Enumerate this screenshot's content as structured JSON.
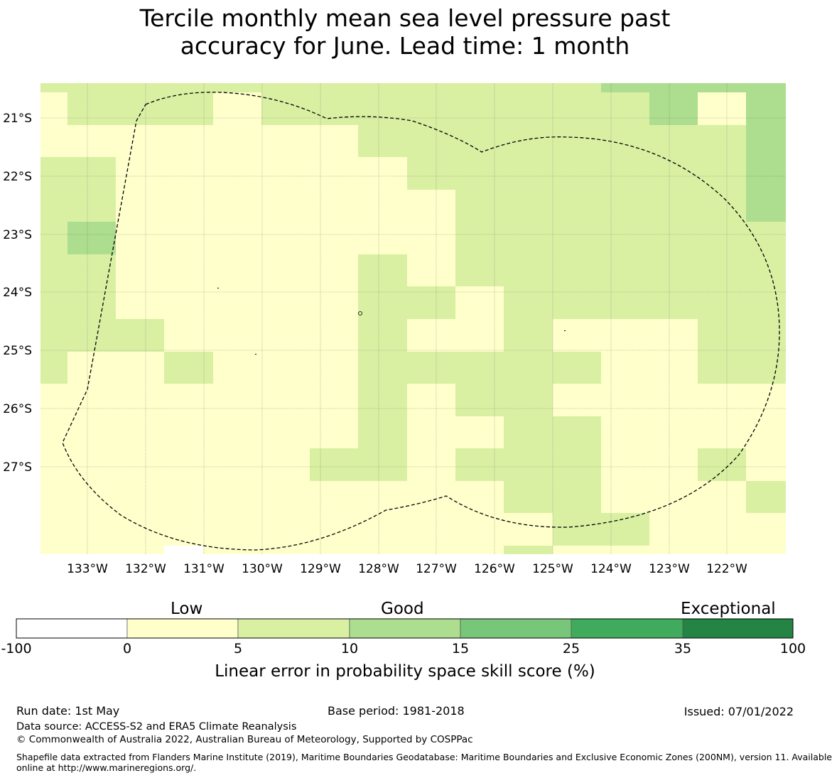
{
  "title": {
    "line1": "Tercile monthly mean sea level pressure past",
    "line2": "accuracy for June. Lead time: 1 month"
  },
  "map": {
    "lat_labels": [
      "21°S",
      "22°S",
      "23°S",
      "24°S",
      "25°S",
      "26°S",
      "27°S"
    ],
    "lon_labels": [
      "133°W",
      "132°W",
      "131°W",
      "130°W",
      "129°W",
      "128°W",
      "127°W",
      "126°W",
      "125°W",
      "124°W",
      "123°W",
      "122°W"
    ],
    "grid": "on",
    "boundary_style": "dashed",
    "category_colors": {
      "white": "#ffffff",
      "low": "#ffffcc",
      "good_low": "#d9f0a3",
      "good_mid": "#addd8e",
      "good_high": "#78c679",
      "very_good": "#41ab5d",
      "exceptional": "#238443"
    }
  },
  "colorbar": {
    "category_labels": [
      "Low",
      "Good",
      "Exceptional"
    ],
    "ticks": [
      "-100",
      "0",
      "5",
      "10",
      "15",
      "25",
      "35",
      "100"
    ],
    "colors": [
      "#ffffff",
      "#ffffcc",
      "#d9f0a3",
      "#addd8e",
      "#78c679",
      "#41ab5d",
      "#238443"
    ],
    "title": "Linear error in probability space skill score (%)"
  },
  "footer": {
    "run_date": "Run date: 1st May",
    "base_period": "Base period: 1981-2018",
    "issued": "Issued: 07/01/2022",
    "data_source": "Data source: ACCESS-S2 and ERA5 Climate Reanalysis",
    "copyright": "© Commonwealth of Australia 2022, Australian Bureau of Meteorology, Supported by COSPPac",
    "shapefile_line1": "Shapefile data extracted from Flanders Marine Institute (2019), Maritime Boundaries Geodatabase: Maritime Boundaries and Exclusive Economic Zones (200NM), version 11. Available",
    "shapefile_line2": "online at http://www.marineregions.org/."
  }
}
